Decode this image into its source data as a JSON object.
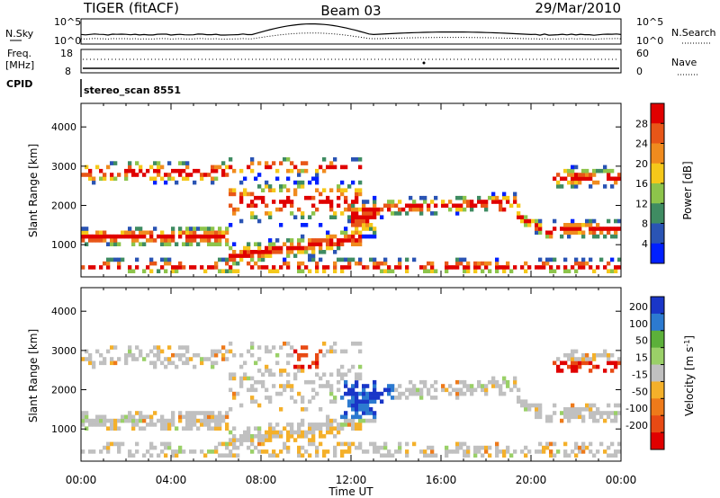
{
  "header": {
    "title": "TIGER (fitACF)",
    "beam": "Beam 03",
    "date": "29/Mar/2010"
  },
  "top_panel": {
    "left_label": "N.Sky",
    "right_label": "N.Search",
    "left_ticks": [
      "10^5",
      "10^0"
    ],
    "right_ticks": [
      "10^5",
      "10^0"
    ]
  },
  "freq_panel": {
    "left_label_1": "Freq.",
    "left_label_2": "[MHz]",
    "left_ticks": [
      "18",
      "8"
    ],
    "right_label": "Nave",
    "right_ticks": [
      "60",
      "0"
    ]
  },
  "cpid": {
    "label": "CPID",
    "value": "stereo_scan 8551"
  },
  "colors": {
    "power": [
      "#0020ff",
      "#2a54b4",
      "#3f8c62",
      "#8dc44b",
      "#f5c81a",
      "#f08b1e",
      "#e85618",
      "#e00000"
    ],
    "velocity": [
      "#1a36c8",
      "#2c7ad0",
      "#5cb03a",
      "#9ad068",
      "#c0c0c0",
      "#f4b02a",
      "#ee7a1a",
      "#e84a14",
      "#e00000"
    ]
  },
  "chart_data": [
    {
      "type": "heatmap",
      "title": "",
      "xlabel": "",
      "ylabel": "Slant Range [km]",
      "x_ticks": [
        "00:00",
        "04:00",
        "08:00",
        "12:00",
        "16:00",
        "20:00",
        "00:00"
      ],
      "y_ticks": [
        "1000",
        "2000",
        "3000",
        "4000"
      ],
      "ylim": [
        180,
        4600
      ],
      "colorbar": {
        "label": "Power [dB]",
        "ticks": [
          "4",
          "8",
          "12",
          "16",
          "20",
          "24",
          "28"
        ],
        "range": [
          0,
          32
        ]
      }
    },
    {
      "type": "heatmap",
      "title": "",
      "xlabel": "Time UT",
      "ylabel": "Slant Range [km]",
      "x_ticks": [
        "00:00",
        "04:00",
        "08:00",
        "12:00",
        "16:00",
        "20:00",
        "00:00"
      ],
      "y_ticks": [
        "1000",
        "2000",
        "3000",
        "4000"
      ],
      "ylim": [
        180,
        4600
      ],
      "colorbar": {
        "label": "Velocity [m s^-1]",
        "ticks": [
          "200",
          "100",
          "50",
          "15",
          "-15",
          "-50",
          "-100",
          "-200"
        ],
        "range": [
          -250,
          250
        ]
      }
    }
  ]
}
